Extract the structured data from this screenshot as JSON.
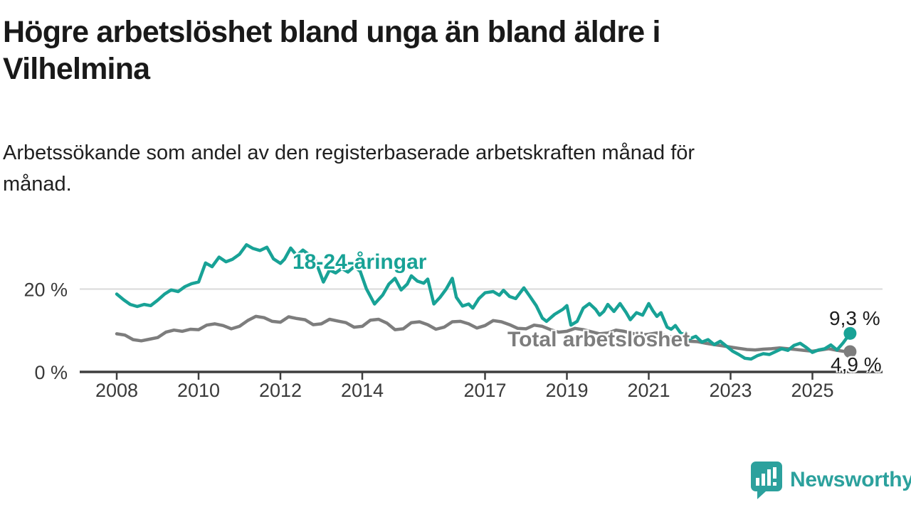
{
  "header": {
    "title_lines": [
      "Högre arbetslöshet bland unga än bland äldre i",
      "Vilhelmina"
    ],
    "subtitle_lines": [
      "Arbetssökande som andel av den registerbaserade arbetskraften månad för",
      "månad."
    ]
  },
  "chart_data": {
    "type": "line",
    "title": "Högre arbetslöshet bland unga än bland äldre i Vilhelmina",
    "subtitle": "Arbetssökande som andel av den registerbaserade arbetskraften månad för månad.",
    "xlabel": "",
    "ylabel": "",
    "unit": "%",
    "xlim": [
      2007.1,
      2026.7
    ],
    "ylim": [
      0,
      33
    ],
    "grid": "horizontal gridline at 20 % only",
    "legend_position": "inline labels on lines",
    "x_tick_labels": [
      "2008",
      "2010",
      "2012",
      "2014",
      "2017",
      "2019",
      "2021",
      "2023",
      "2025"
    ],
    "x_tick_years": [
      2008,
      2010,
      2012,
      2014,
      2017,
      2019,
      2021,
      2023,
      2025
    ],
    "y_ticks": [
      {
        "value": 0,
        "label": "0 %"
      },
      {
        "value": 20,
        "label": "20 %"
      }
    ],
    "colors": {
      "young": "#18a296",
      "total": "#7d7d7d",
      "axis": "#3f3f3f",
      "grid": "#d9d9d9"
    },
    "series": [
      {
        "name": "18-24-åringar",
        "color": "#18a296",
        "end_label": "9,3 %",
        "end_value": 9.3,
        "points": [
          [
            2008.0,
            18.8
          ],
          [
            2008.17,
            17.4
          ],
          [
            2008.33,
            16.3
          ],
          [
            2008.5,
            15.8
          ],
          [
            2008.67,
            16.3
          ],
          [
            2008.83,
            16.0
          ],
          [
            2009.0,
            17.3
          ],
          [
            2009.17,
            18.8
          ],
          [
            2009.33,
            19.8
          ],
          [
            2009.5,
            19.4
          ],
          [
            2009.67,
            20.6
          ],
          [
            2009.83,
            21.3
          ],
          [
            2010.0,
            21.7
          ],
          [
            2010.17,
            26.3
          ],
          [
            2010.33,
            25.4
          ],
          [
            2010.5,
            27.7
          ],
          [
            2010.67,
            26.6
          ],
          [
            2010.83,
            27.2
          ],
          [
            2011.0,
            28.4
          ],
          [
            2011.17,
            30.7
          ],
          [
            2011.33,
            29.8
          ],
          [
            2011.5,
            29.3
          ],
          [
            2011.67,
            30.1
          ],
          [
            2011.83,
            27.3
          ],
          [
            2012.0,
            26.2
          ],
          [
            2012.1,
            27.2
          ],
          [
            2012.25,
            29.9
          ],
          [
            2012.4,
            28.1
          ],
          [
            2012.55,
            29.4
          ],
          [
            2012.7,
            28.3
          ],
          [
            2012.85,
            27.0
          ],
          [
            2013.05,
            21.7
          ],
          [
            2013.2,
            24.6
          ],
          [
            2013.35,
            23.9
          ],
          [
            2013.5,
            25.0
          ],
          [
            2013.65,
            24.1
          ],
          [
            2013.8,
            25.4
          ],
          [
            2013.95,
            24.3
          ],
          [
            2014.1,
            20.1
          ],
          [
            2014.3,
            16.4
          ],
          [
            2014.5,
            18.6
          ],
          [
            2014.65,
            21.2
          ],
          [
            2014.8,
            22.6
          ],
          [
            2014.95,
            19.8
          ],
          [
            2015.1,
            21.2
          ],
          [
            2015.2,
            23.2
          ],
          [
            2015.35,
            21.9
          ],
          [
            2015.5,
            21.4
          ],
          [
            2015.6,
            22.4
          ],
          [
            2015.75,
            16.4
          ],
          [
            2015.9,
            18.0
          ],
          [
            2016.05,
            20.0
          ],
          [
            2016.2,
            22.6
          ],
          [
            2016.3,
            18.0
          ],
          [
            2016.45,
            15.9
          ],
          [
            2016.6,
            16.4
          ],
          [
            2016.7,
            15.4
          ],
          [
            2016.85,
            17.7
          ],
          [
            2017.0,
            19.1
          ],
          [
            2017.2,
            19.4
          ],
          [
            2017.35,
            18.5
          ],
          [
            2017.45,
            19.7
          ],
          [
            2017.6,
            18.2
          ],
          [
            2017.75,
            17.7
          ],
          [
            2017.95,
            20.3
          ],
          [
            2018.1,
            18.2
          ],
          [
            2018.25,
            16.0
          ],
          [
            2018.4,
            13.0
          ],
          [
            2018.5,
            12.2
          ],
          [
            2018.7,
            13.9
          ],
          [
            2018.9,
            15.1
          ],
          [
            2019.0,
            16.0
          ],
          [
            2019.1,
            11.3
          ],
          [
            2019.25,
            12.2
          ],
          [
            2019.4,
            15.4
          ],
          [
            2019.55,
            16.5
          ],
          [
            2019.7,
            15.1
          ],
          [
            2019.8,
            13.7
          ],
          [
            2019.9,
            14.6
          ],
          [
            2020.0,
            16.3
          ],
          [
            2020.15,
            14.6
          ],
          [
            2020.3,
            16.5
          ],
          [
            2020.45,
            14.3
          ],
          [
            2020.55,
            12.6
          ],
          [
            2020.7,
            14.3
          ],
          [
            2020.85,
            13.7
          ],
          [
            2021.0,
            16.5
          ],
          [
            2021.1,
            14.8
          ],
          [
            2021.2,
            13.4
          ],
          [
            2021.3,
            14.3
          ],
          [
            2021.45,
            10.8
          ],
          [
            2021.55,
            10.3
          ],
          [
            2021.65,
            11.2
          ],
          [
            2021.8,
            9.1
          ],
          [
            2021.9,
            9.4
          ],
          [
            2022.0,
            8.0
          ],
          [
            2022.15,
            8.6
          ],
          [
            2022.3,
            7.2
          ],
          [
            2022.45,
            7.8
          ],
          [
            2022.6,
            6.6
          ],
          [
            2022.75,
            7.4
          ],
          [
            2022.9,
            6.2
          ],
          [
            2023.05,
            5.0
          ],
          [
            2023.2,
            4.2
          ],
          [
            2023.35,
            3.3
          ],
          [
            2023.5,
            3.1
          ],
          [
            2023.65,
            3.9
          ],
          [
            2023.8,
            4.4
          ],
          [
            2023.95,
            4.2
          ],
          [
            2024.1,
            4.9
          ],
          [
            2024.25,
            5.6
          ],
          [
            2024.4,
            5.2
          ],
          [
            2024.55,
            6.4
          ],
          [
            2024.7,
            6.9
          ],
          [
            2024.85,
            5.9
          ],
          [
            2025.0,
            4.7
          ],
          [
            2025.15,
            5.3
          ],
          [
            2025.3,
            5.6
          ],
          [
            2025.45,
            6.5
          ],
          [
            2025.6,
            5.3
          ],
          [
            2025.75,
            7.0
          ],
          [
            2025.92,
            9.3
          ]
        ]
      },
      {
        "name": "Total arbetslöshet",
        "color": "#7d7d7d",
        "end_label": "4,9 %",
        "end_value": 4.9,
        "points": [
          [
            2008.0,
            9.2
          ],
          [
            2008.2,
            8.9
          ],
          [
            2008.4,
            7.8
          ],
          [
            2008.6,
            7.5
          ],
          [
            2008.8,
            7.9
          ],
          [
            2009.0,
            8.3
          ],
          [
            2009.2,
            9.6
          ],
          [
            2009.4,
            10.1
          ],
          [
            2009.6,
            9.8
          ],
          [
            2009.8,
            10.3
          ],
          [
            2010.0,
            10.2
          ],
          [
            2010.2,
            11.3
          ],
          [
            2010.4,
            11.6
          ],
          [
            2010.6,
            11.2
          ],
          [
            2010.8,
            10.4
          ],
          [
            2011.0,
            11.0
          ],
          [
            2011.2,
            12.4
          ],
          [
            2011.4,
            13.4
          ],
          [
            2011.6,
            13.1
          ],
          [
            2011.8,
            12.2
          ],
          [
            2012.0,
            12.0
          ],
          [
            2012.2,
            13.3
          ],
          [
            2012.4,
            12.9
          ],
          [
            2012.6,
            12.6
          ],
          [
            2012.8,
            11.4
          ],
          [
            2013.0,
            11.6
          ],
          [
            2013.2,
            12.7
          ],
          [
            2013.4,
            12.3
          ],
          [
            2013.6,
            11.9
          ],
          [
            2013.8,
            10.8
          ],
          [
            2014.0,
            11.0
          ],
          [
            2014.2,
            12.5
          ],
          [
            2014.4,
            12.7
          ],
          [
            2014.6,
            11.8
          ],
          [
            2014.8,
            10.2
          ],
          [
            2015.0,
            10.4
          ],
          [
            2015.2,
            11.9
          ],
          [
            2015.4,
            12.1
          ],
          [
            2015.6,
            11.4
          ],
          [
            2015.8,
            10.3
          ],
          [
            2016.0,
            10.8
          ],
          [
            2016.2,
            12.1
          ],
          [
            2016.4,
            12.2
          ],
          [
            2016.6,
            11.6
          ],
          [
            2016.8,
            10.6
          ],
          [
            2017.0,
            11.2
          ],
          [
            2017.2,
            12.4
          ],
          [
            2017.4,
            12.1
          ],
          [
            2017.6,
            11.4
          ],
          [
            2017.8,
            10.5
          ],
          [
            2018.0,
            10.4
          ],
          [
            2018.2,
            11.3
          ],
          [
            2018.4,
            11.0
          ],
          [
            2018.6,
            10.2
          ],
          [
            2018.8,
            9.6
          ],
          [
            2019.0,
            9.8
          ],
          [
            2019.2,
            10.5
          ],
          [
            2019.4,
            10.2
          ],
          [
            2019.6,
            9.7
          ],
          [
            2019.8,
            9.2
          ],
          [
            2020.0,
            9.4
          ],
          [
            2020.2,
            10.1
          ],
          [
            2020.4,
            9.8
          ],
          [
            2020.6,
            9.3
          ],
          [
            2020.8,
            8.9
          ],
          [
            2021.0,
            9.1
          ],
          [
            2021.2,
            9.4
          ],
          [
            2021.4,
            8.8
          ],
          [
            2021.6,
            8.3
          ],
          [
            2021.8,
            7.7
          ],
          [
            2022.0,
            7.4
          ],
          [
            2022.2,
            7.3
          ],
          [
            2022.4,
            6.9
          ],
          [
            2022.6,
            6.6
          ],
          [
            2022.8,
            6.3
          ],
          [
            2023.0,
            6.0
          ],
          [
            2023.2,
            5.7
          ],
          [
            2023.4,
            5.4
          ],
          [
            2023.6,
            5.3
          ],
          [
            2023.8,
            5.5
          ],
          [
            2024.0,
            5.6
          ],
          [
            2024.2,
            5.8
          ],
          [
            2024.4,
            5.6
          ],
          [
            2024.6,
            5.4
          ],
          [
            2024.8,
            5.2
          ],
          [
            2025.0,
            5.0
          ],
          [
            2025.2,
            5.3
          ],
          [
            2025.4,
            5.6
          ],
          [
            2025.6,
            5.2
          ],
          [
            2025.75,
            5.0
          ],
          [
            2025.92,
            4.9
          ]
        ]
      }
    ]
  },
  "footer": {
    "brand": "Newsworthy",
    "brand_color": "#2ca19d"
  }
}
